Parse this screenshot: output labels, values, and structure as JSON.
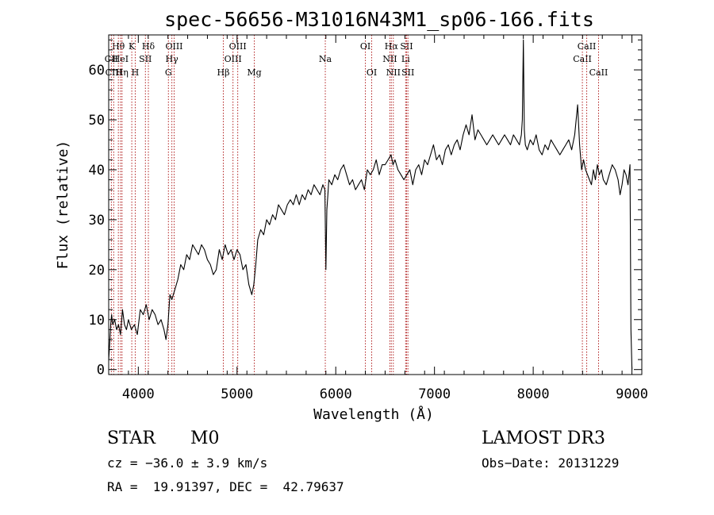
{
  "chart_data": {
    "type": "line",
    "title": "spec-56656-M31016N43M1_sp06-166.fits",
    "xlabel": "Wavelength (Å)",
    "ylabel": "Flux (relative)",
    "xlim": [
      3700,
      9100
    ],
    "ylim": [
      -1,
      67
    ],
    "xticks": [
      4000,
      5000,
      6000,
      7000,
      8000,
      9000
    ],
    "yticks": [
      0,
      10,
      20,
      30,
      40,
      50,
      60
    ],
    "xtick_labels": [
      "4000",
      "5000",
      "6000",
      "7000",
      "8000",
      "9000"
    ],
    "ytick_labels": [
      "0",
      "10",
      "20",
      "30",
      "40",
      "50",
      "60"
    ],
    "series": [
      {
        "name": "spectrum",
        "x": [
          3700,
          3710,
          3720,
          3730,
          3740,
          3760,
          3780,
          3800,
          3820,
          3840,
          3860,
          3880,
          3900,
          3930,
          3960,
          3990,
          4020,
          4050,
          4080,
          4110,
          4140,
          4170,
          4200,
          4230,
          4260,
          4280,
          4300,
          4320,
          4340,
          4370,
          4400,
          4430,
          4460,
          4490,
          4520,
          4550,
          4580,
          4610,
          4640,
          4670,
          4700,
          4730,
          4760,
          4790,
          4820,
          4850,
          4880,
          4910,
          4940,
          4970,
          5000,
          5030,
          5060,
          5090,
          5120,
          5150,
          5170,
          5190,
          5210,
          5240,
          5270,
          5300,
          5330,
          5360,
          5390,
          5420,
          5450,
          5480,
          5510,
          5540,
          5570,
          5600,
          5630,
          5660,
          5690,
          5720,
          5750,
          5780,
          5810,
          5840,
          5870,
          5890,
          5900,
          5910,
          5920,
          5930,
          5960,
          5990,
          6020,
          6050,
          6080,
          6110,
          6140,
          6170,
          6200,
          6230,
          6260,
          6290,
          6320,
          6350,
          6380,
          6410,
          6440,
          6470,
          6500,
          6530,
          6560,
          6580,
          6600,
          6630,
          6660,
          6690,
          6720,
          6750,
          6780,
          6810,
          6840,
          6870,
          6900,
          6930,
          6960,
          6990,
          7020,
          7050,
          7080,
          7110,
          7140,
          7170,
          7200,
          7230,
          7260,
          7290,
          7320,
          7350,
          7380,
          7410,
          7440,
          7470,
          7500,
          7530,
          7560,
          7590,
          7620,
          7650,
          7680,
          7710,
          7740,
          7770,
          7800,
          7830,
          7860,
          7880,
          7890,
          7900,
          7910,
          7920,
          7940,
          7970,
          8000,
          8030,
          8060,
          8090,
          8120,
          8150,
          8180,
          8210,
          8240,
          8270,
          8300,
          8330,
          8360,
          8390,
          8420,
          8450,
          8470,
          8490,
          8510,
          8530,
          8550,
          8570,
          8590,
          8610,
          8630,
          8650,
          8670,
          8690,
          8710,
          8740,
          8770,
          8800,
          8830,
          8860,
          8880,
          8900,
          8920,
          8940,
          8960,
          8980,
          8990,
          9000
        ],
        "values": [
          2,
          5,
          9,
          11,
          9,
          10,
          8,
          9,
          7,
          12,
          9,
          8,
          10,
          8,
          9,
          7,
          12,
          11,
          13,
          10,
          12,
          11,
          9,
          10,
          8,
          6,
          9,
          15,
          14,
          16,
          18,
          21,
          20,
          23,
          22,
          25,
          24,
          23,
          25,
          24,
          22,
          21,
          19,
          20,
          24,
          22,
          25,
          23,
          24,
          22,
          24,
          23,
          20,
          21,
          17,
          15,
          17,
          21,
          26,
          28,
          27,
          30,
          29,
          31,
          30,
          33,
          32,
          31,
          33,
          34,
          33,
          35,
          33,
          35,
          34,
          36,
          35,
          37,
          36,
          35,
          37,
          36,
          20,
          32,
          35,
          38,
          37,
          39,
          38,
          40,
          41,
          39,
          37,
          38,
          36,
          37,
          38,
          36,
          40,
          39,
          40,
          42,
          39,
          41,
          41,
          42,
          43,
          41,
          42,
          40,
          39,
          38,
          39,
          40,
          37,
          40,
          41,
          39,
          42,
          41,
          43,
          45,
          42,
          43,
          41,
          44,
          45,
          43,
          45,
          46,
          44,
          47,
          49,
          47,
          51,
          46,
          48,
          47,
          46,
          45,
          46,
          47,
          46,
          45,
          46,
          47,
          46,
          45,
          47,
          46,
          45,
          47,
          50,
          66,
          48,
          45,
          44,
          46,
          45,
          47,
          44,
          43,
          45,
          44,
          46,
          45,
          44,
          43,
          44,
          45,
          46,
          44,
          47,
          53,
          45,
          40,
          42,
          40,
          39,
          38,
          37,
          40,
          38,
          41,
          39,
          40,
          38,
          37,
          39,
          41,
          40,
          38,
          35,
          37,
          40,
          39,
          37,
          41,
          8,
          0
        ]
      }
    ],
    "lines": [
      {
        "label": "Hθ",
        "x": 3798,
        "row": 1
      },
      {
        "label": "CII",
        "x": 3727,
        "row": 2
      },
      {
        "label": "CIII",
        "x": 3751,
        "row": 3
      },
      {
        "label": "HeI",
        "x": 3820,
        "row": 2
      },
      {
        "label": "Hη",
        "x": 3835,
        "row": 3
      },
      {
        "label": "K",
        "x": 3934,
        "row": 1
      },
      {
        "label": "H",
        "x": 3969,
        "row": 3
      },
      {
        "label": "SII",
        "x": 4072,
        "row": 2
      },
      {
        "label": "Hδ",
        "x": 4102,
        "row": 1
      },
      {
        "label": "Hγ",
        "x": 4340,
        "row": 2
      },
      {
        "label": "OIII",
        "x": 4363,
        "row": 1
      },
      {
        "label": "G",
        "x": 4305,
        "row": 3
      },
      {
        "label": "Hβ",
        "x": 4861,
        "row": 3
      },
      {
        "label": "OIII",
        "x": 4959,
        "row": 2
      },
      {
        "label": "OIII",
        "x": 5007,
        "row": 1
      },
      {
        "label": "Mg",
        "x": 5175,
        "row": 3
      },
      {
        "label": "Na",
        "x": 5894,
        "row": 2
      },
      {
        "label": "OI",
        "x": 6300,
        "row": 1
      },
      {
        "label": "OI",
        "x": 6364,
        "row": 3
      },
      {
        "label": "NII",
        "x": 6548,
        "row": 2
      },
      {
        "label": "Hα",
        "x": 6563,
        "row": 1
      },
      {
        "label": "NII",
        "x": 6583,
        "row": 3
      },
      {
        "label": "SII",
        "x": 6717,
        "row": 1
      },
      {
        "label": "Li",
        "x": 6708,
        "row": 2
      },
      {
        "label": "SII",
        "x": 6731,
        "row": 3
      },
      {
        "label": "CaII",
        "x": 8498,
        "row": 2
      },
      {
        "label": "CaII",
        "x": 8542,
        "row": 1
      },
      {
        "label": "CaII",
        "x": 8662,
        "row": 3
      }
    ]
  },
  "info": {
    "object_class": "STAR",
    "subclass": "M0",
    "survey": "LAMOST DR3",
    "cz": "cz = −36.0 ± 3.9 km/s",
    "obs_date": "Obs−Date: 20131229",
    "coords": "RA =  19.91397, DEC =  42.79637"
  }
}
